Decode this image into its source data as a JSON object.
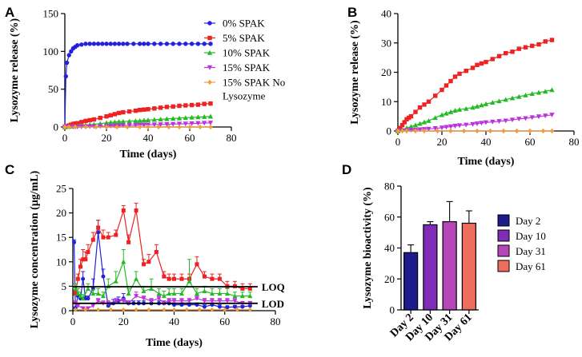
{
  "chart_data": [
    {
      "panel": "A",
      "type": "line",
      "xlabel": "Time (days)",
      "ylabel": "Lysozyme release (%)",
      "xlim": [
        0,
        80
      ],
      "ylim": [
        0,
        150
      ],
      "xticks": [
        0,
        20,
        40,
        60,
        80
      ],
      "yticks": [
        0,
        50,
        100,
        150
      ],
      "legend_position": "top-right",
      "series": [
        {
          "name": "0% SPAK",
          "color": "#2222dd",
          "marker": "circle",
          "x": [
            0,
            0.5,
            1,
            2,
            3,
            4,
            5,
            6,
            8,
            10,
            12,
            14,
            16,
            18,
            20,
            22,
            24,
            26,
            28,
            30,
            33,
            36,
            38,
            40,
            43,
            46,
            49,
            52,
            55,
            58,
            61,
            64,
            67,
            70
          ],
          "y": [
            0,
            67,
            85,
            95,
            100,
            104,
            106,
            108,
            109,
            110,
            110,
            110,
            110,
            110,
            110,
            110,
            110,
            110,
            110,
            110,
            110,
            110,
            110,
            110,
            110,
            110,
            110,
            110,
            110,
            110,
            110,
            110,
            110,
            110
          ]
        },
        {
          "name": "5% SPAK",
          "color": "#ee2222",
          "marker": "square",
          "x": [
            0,
            1,
            2,
            3,
            4,
            5,
            6,
            8,
            10,
            12,
            14,
            17,
            20,
            22,
            24,
            26,
            28,
            31,
            34,
            36,
            38,
            40,
            43,
            46,
            49,
            52,
            55,
            58,
            61,
            64,
            67,
            70
          ],
          "y": [
            0,
            1,
            2,
            3,
            4,
            4.5,
            5,
            6.5,
            8,
            9,
            10,
            12,
            14,
            15.5,
            17,
            18.5,
            19.5,
            20.5,
            21.5,
            22.5,
            23,
            23.5,
            24.5,
            25.5,
            26.5,
            27,
            28,
            28.5,
            29,
            29.5,
            30.5,
            31
          ]
        },
        {
          "name": "10% SPAK",
          "color": "#22bb22",
          "marker": "triangle-up",
          "x": [
            0,
            2,
            4,
            6,
            8,
            10,
            12,
            14,
            17,
            20,
            22,
            24,
            26,
            28,
            31,
            34,
            36,
            38,
            40,
            43,
            46,
            49,
            52,
            55,
            58,
            61,
            64,
            67,
            70
          ],
          "y": [
            0,
            0.5,
            1,
            1.5,
            2,
            2.5,
            3,
            3.5,
            4.5,
            5.5,
            6,
            6.5,
            7,
            7.3,
            7.6,
            8,
            8.4,
            8.8,
            9.2,
            9.7,
            10.2,
            10.7,
            11.2,
            11.7,
            12.2,
            12.7,
            13.1,
            13.5,
            14
          ]
        },
        {
          "name": "15% SPAK",
          "color": "#bb33dd",
          "marker": "triangle-down",
          "x": [
            0,
            2,
            4,
            6,
            8,
            10,
            12,
            14,
            17,
            20,
            22,
            24,
            26,
            28,
            31,
            34,
            36,
            38,
            40,
            43,
            46,
            49,
            52,
            55,
            58,
            61,
            64,
            67,
            70
          ],
          "y": [
            0,
            0.1,
            0.2,
            0.3,
            0.4,
            0.5,
            0.6,
            0.7,
            0.9,
            1.1,
            1.3,
            1.5,
            1.7,
            1.9,
            2.1,
            2.3,
            2.5,
            2.7,
            2.9,
            3.1,
            3.3,
            3.5,
            3.8,
            4.1,
            4.3,
            4.6,
            4.9,
            5.2,
            5.5
          ]
        },
        {
          "name": "15% SPAK No Lysozyme",
          "color": "#f39c3c",
          "marker": "diamond",
          "x": [
            0,
            2,
            5,
            10,
            15,
            20,
            25,
            30,
            36,
            40,
            45,
            50,
            55,
            60,
            65,
            70
          ],
          "y": [
            0,
            0,
            0,
            0,
            0,
            0,
            0,
            0,
            0,
            0,
            0,
            0,
            0,
            0,
            0,
            0
          ]
        }
      ]
    },
    {
      "panel": "B",
      "type": "line",
      "xlabel": "Time (days)",
      "ylabel": "Lysozyme release (%)",
      "xlim": [
        0,
        80
      ],
      "ylim": [
        0,
        40
      ],
      "xticks": [
        0,
        20,
        40,
        60,
        80
      ],
      "yticks": [
        0,
        10,
        20,
        30,
        40
      ],
      "series": [
        {
          "name": "5% SPAK",
          "color": "#ee2222",
          "marker": "square",
          "x": [
            0,
            1,
            2,
            3,
            4,
            5,
            6,
            8,
            10,
            12,
            14,
            17,
            20,
            22,
            24,
            26,
            28,
            31,
            34,
            36,
            38,
            40,
            43,
            46,
            49,
            52,
            55,
            58,
            61,
            64,
            67,
            70
          ],
          "y": [
            0,
            1,
            2,
            3,
            4,
            4.5,
            5,
            6.5,
            8,
            9,
            10,
            12,
            14,
            15.5,
            17,
            18.5,
            19.5,
            20.5,
            21.5,
            22.5,
            23,
            23.5,
            24.5,
            25.5,
            26.5,
            27,
            28,
            28.5,
            29,
            29.5,
            30.5,
            31
          ]
        },
        {
          "name": "10% SPAK",
          "color": "#22bb22",
          "marker": "triangle-up",
          "x": [
            0,
            2,
            4,
            6,
            8,
            10,
            12,
            14,
            17,
            20,
            22,
            24,
            26,
            28,
            31,
            34,
            36,
            38,
            40,
            43,
            46,
            49,
            52,
            55,
            58,
            61,
            64,
            67,
            70
          ],
          "y": [
            0,
            0.5,
            1,
            1.5,
            2,
            2.5,
            3,
            3.5,
            4.5,
            5.5,
            6,
            6.5,
            7,
            7.3,
            7.6,
            8,
            8.4,
            8.8,
            9.2,
            9.7,
            10.2,
            10.7,
            11.2,
            11.7,
            12.2,
            12.7,
            13.1,
            13.5,
            14
          ]
        },
        {
          "name": "15% SPAK",
          "color": "#bb33dd",
          "marker": "triangle-down",
          "x": [
            0,
            2,
            4,
            6,
            8,
            10,
            12,
            14,
            17,
            20,
            22,
            24,
            26,
            28,
            31,
            34,
            36,
            38,
            40,
            43,
            46,
            49,
            52,
            55,
            58,
            61,
            64,
            67,
            70
          ],
          "y": [
            0,
            0.1,
            0.2,
            0.3,
            0.4,
            0.5,
            0.6,
            0.7,
            0.9,
            1.1,
            1.3,
            1.5,
            1.7,
            1.9,
            2.1,
            2.3,
            2.5,
            2.7,
            2.9,
            3.1,
            3.3,
            3.5,
            3.8,
            4.1,
            4.3,
            4.6,
            4.9,
            5.2,
            5.5
          ]
        },
        {
          "name": "15% SPAK No Lysozyme",
          "color": "#f39c3c",
          "marker": "diamond",
          "x": [
            0,
            2,
            4,
            8,
            12,
            18,
            24,
            30,
            36,
            42,
            48,
            54,
            60,
            66,
            70
          ],
          "y": [
            0,
            0,
            0,
            0,
            0,
            0,
            0,
            0,
            0,
            0,
            0,
            0,
            0,
            0,
            0
          ]
        }
      ]
    },
    {
      "panel": "C",
      "type": "line",
      "xlabel": "Time (days)",
      "ylabel": "Lysozyme concentration (μg/mL)",
      "xlim": [
        0,
        80
      ],
      "ylim": [
        0,
        25
      ],
      "xticks": [
        0,
        20,
        40,
        60,
        80
      ],
      "yticks": [
        0,
        5,
        10,
        15,
        20,
        25
      ],
      "reference_lines": [
        {
          "label": "LOQ",
          "y": 4.9
        },
        {
          "label": "LOD",
          "y": 1.5
        }
      ],
      "series": [
        {
          "name": "0% SPAK",
          "color": "#2222dd",
          "marker": "circle",
          "x": [
            0.5,
            1,
            2,
            3,
            4,
            5,
            6,
            8,
            10,
            12,
            14,
            16,
            18,
            20,
            22,
            24,
            26,
            28,
            31,
            34,
            36,
            38,
            40,
            43,
            46,
            49,
            52,
            55,
            58,
            61,
            64,
            67,
            70
          ],
          "y": [
            14,
            0.5,
            3,
            2.5,
            6.5,
            2.5,
            2.5,
            4.5,
            16,
            7,
            1,
            1.5,
            2,
            2.5,
            1.5,
            1.5,
            1.5,
            1.5,
            1.5,
            1.5,
            1.5,
            1.5,
            1.2,
            1.2,
            1.2,
            1.2,
            0.8,
            1.2,
            0.8,
            0.7,
            0.8,
            0.8,
            1
          ],
          "err": [
            0.5,
            0.3,
            0.8,
            0.8,
            1.5,
            0.5,
            0.5,
            2,
            2.5,
            1.5,
            0.5,
            0.8,
            0.8,
            1,
            0.5,
            0.5,
            0.5,
            0.5,
            0.5,
            0.5,
            0.5,
            0.5,
            0.4,
            0.4,
            0.4,
            0.4,
            0.4,
            0.4,
            0.4,
            0.3,
            0.3,
            0.3,
            0.4
          ]
        },
        {
          "name": "5% SPAK",
          "color": "#ee2222",
          "marker": "square",
          "x": [
            1,
            2,
            3,
            4,
            5,
            6,
            8,
            10,
            12,
            14,
            17,
            20,
            22,
            25,
            28,
            30,
            33,
            36,
            38,
            40,
            43,
            46,
            49,
            52,
            55,
            58,
            61,
            64,
            67,
            70
          ],
          "y": [
            3.5,
            6.5,
            9,
            10.5,
            10.5,
            12,
            14.5,
            17,
            15,
            15,
            15.5,
            20.5,
            14,
            20.5,
            9.5,
            10,
            12,
            7,
            6.5,
            6.5,
            6.5,
            6.5,
            9.5,
            7,
            6.5,
            6.5,
            5,
            5,
            4.5,
            4.5
          ],
          "err": [
            0.5,
            1,
            1.5,
            2,
            1.5,
            1.5,
            1.5,
            1.5,
            1.5,
            1,
            1,
            1,
            1.5,
            1.5,
            1,
            1.5,
            1.5,
            1,
            1,
            1,
            1,
            1,
            1.5,
            1,
            1,
            1,
            1,
            1,
            1,
            1
          ]
        },
        {
          "name": "10% SPAK",
          "color": "#22bb22",
          "marker": "triangle-up",
          "x": [
            1,
            2,
            3,
            4,
            6,
            8,
            10,
            12,
            14,
            17,
            20,
            22,
            25,
            28,
            31,
            34,
            36,
            38,
            40,
            43,
            46,
            49,
            52,
            55,
            58,
            61,
            64,
            67,
            70
          ],
          "y": [
            4.5,
            3.5,
            3,
            2.5,
            4.5,
            3.5,
            3.5,
            3,
            5,
            6,
            10,
            3.5,
            6.5,
            4,
            4.5,
            3.5,
            3,
            3.5,
            3.5,
            3.5,
            6,
            3.5,
            4,
            3.5,
            3.5,
            3.5,
            3,
            3,
            3
          ],
          "err": [
            1,
            1,
            0.8,
            0.8,
            1,
            0.8,
            1,
            0.8,
            1.5,
            2,
            2.5,
            1,
            1.5,
            1,
            2,
            1,
            1,
            1,
            1,
            1,
            4.5,
            1,
            1,
            1,
            1,
            1,
            0.8,
            0.8,
            0.8
          ]
        },
        {
          "name": "15% SPAK",
          "color": "#bb33dd",
          "marker": "triangle-down",
          "x": [
            1,
            2,
            4,
            6,
            8,
            10,
            12,
            14,
            17,
            20,
            22,
            25,
            28,
            31,
            34,
            36,
            38,
            40,
            43,
            46,
            49,
            52,
            55,
            58,
            61,
            64,
            67,
            70
          ],
          "y": [
            1.5,
            1,
            0.5,
            0.5,
            1,
            2,
            1.5,
            1.5,
            2,
            2,
            1.5,
            3,
            2.5,
            2,
            2.5,
            1.5,
            2,
            2,
            2,
            2,
            2.5,
            2,
            2,
            2,
            2,
            2,
            1.5,
            1.5
          ],
          "err": [
            0.5,
            0.4,
            0.3,
            0.3,
            0.4,
            0.5,
            0.5,
            0.5,
            0.5,
            0.5,
            0.5,
            0.8,
            0.5,
            0.5,
            0.5,
            0.5,
            0.5,
            0.5,
            0.5,
            0.5,
            0.5,
            0.5,
            0.5,
            0.5,
            0.5,
            0.5,
            0.4,
            0.4
          ]
        },
        {
          "name": "15% SPAK No Lysozyme",
          "color": "#f39c3c",
          "marker": "diamond",
          "x": [
            1,
            5,
            10,
            15,
            20,
            25,
            30,
            36,
            40,
            45,
            50,
            55,
            60,
            65,
            70
          ],
          "y": [
            0.2,
            0.2,
            0.2,
            0.2,
            0.2,
            0.2,
            0.2,
            0.2,
            0.2,
            0.2,
            0.2,
            0.2,
            0.2,
            0.2,
            0.2
          ],
          "err": [
            0,
            0,
            0,
            0,
            0,
            0,
            0,
            0,
            0,
            0,
            0,
            0,
            0,
            0,
            0
          ]
        }
      ]
    },
    {
      "panel": "D",
      "type": "bar",
      "xlabel": "",
      "ylabel": "Lysozyme bioactivity (%)",
      "ylim": [
        0,
        80
      ],
      "yticks": [
        0,
        20,
        40,
        60,
        80
      ],
      "categories": [
        "Day 2",
        "Day 10",
        "Day 31",
        "Day 61"
      ],
      "values": [
        37,
        55,
        57,
        56
      ],
      "errors": [
        5,
        2,
        13,
        8
      ],
      "colors": [
        "#1c1c8c",
        "#7f2cb6",
        "#b547b8",
        "#ee6e5e"
      ],
      "legend": [
        "Day 2",
        "Day 10",
        "Day 31",
        "Day 61"
      ],
      "legend_position": "right"
    }
  ]
}
